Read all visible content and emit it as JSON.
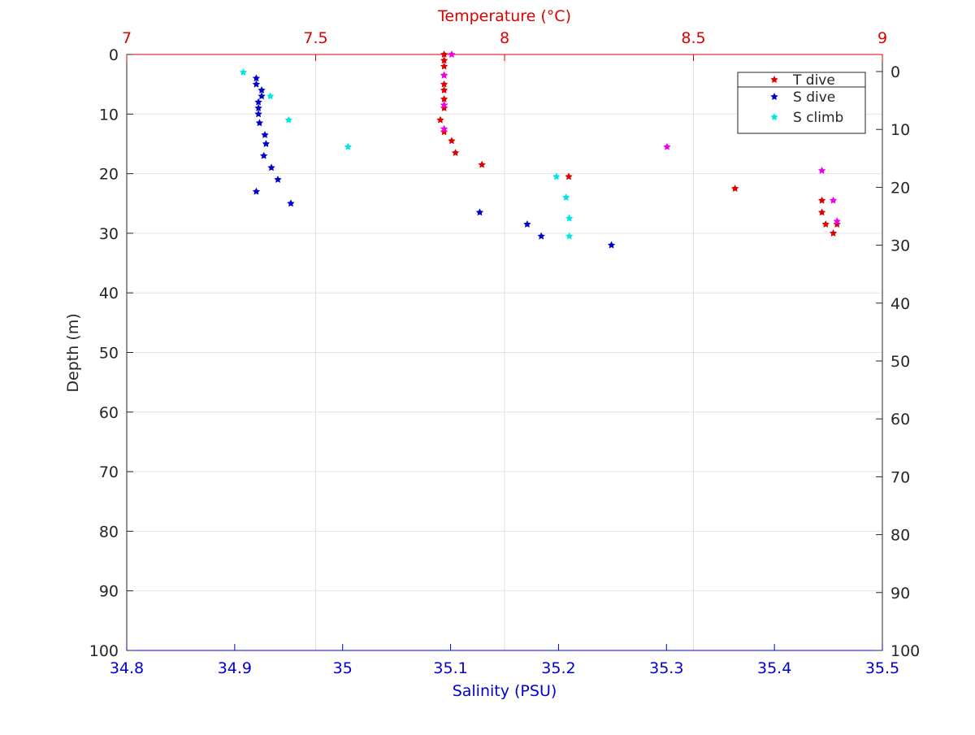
{
  "chart_data": {
    "type": "scatter",
    "axes": {
      "depth_left": {
        "label": "Depth (m)",
        "range": [
          0,
          100
        ],
        "ticks": [
          0,
          10,
          20,
          30,
          40,
          50,
          60,
          70,
          80,
          90,
          100
        ],
        "reversed": true
      },
      "depth_right": {
        "range": [
          0,
          100
        ],
        "ticks": [
          0,
          10,
          20,
          30,
          40,
          50,
          60,
          70,
          80,
          90,
          100
        ],
        "reversed": true
      },
      "salinity": {
        "label": "Salinity (PSU)",
        "range": [
          34.8,
          35.5
        ],
        "ticks": [
          "34.8",
          "34.9",
          "35",
          "35.1",
          "35.2",
          "35.3",
          "35.4",
          "35.5"
        ],
        "color": "#0000cc"
      },
      "temperature": {
        "label": "Temperature (°C)",
        "range": [
          7,
          9
        ],
        "ticks": [
          "7",
          "7.5",
          "8",
          "8.5",
          "9"
        ],
        "color": "#dd0000"
      }
    },
    "grid": true,
    "legend": {
      "position": "top-right",
      "entries": [
        "T dive",
        "S dive",
        "S climb"
      ]
    },
    "series": [
      {
        "name": "T dive",
        "axis": "temperature",
        "color": "#dd0000",
        "x": [
          7.84,
          7.84,
          7.84,
          7.84,
          7.84,
          7.84,
          7.84,
          7.84,
          7.84,
          7.83,
          7.84,
          7.86,
          7.87,
          7.94,
          8.17,
          8.61,
          8.84,
          8.84,
          8.85,
          8.87,
          8.88
        ],
        "y": [
          0,
          1,
          2,
          3.5,
          5,
          6,
          7.5,
          8.5,
          9,
          11,
          13,
          14.5,
          16.5,
          18.5,
          20.5,
          22.5,
          24.5,
          26.5,
          28.5,
          30,
          28.5
        ]
      },
      {
        "name": "S dive",
        "axis": "salinity",
        "color": "#0000cc",
        "x": [
          34.92,
          34.92,
          34.925,
          34.925,
          34.922,
          34.922,
          34.922,
          34.923,
          34.928,
          34.929,
          34.927,
          34.934,
          34.94,
          34.92,
          34.952,
          35.127,
          35.171,
          35.184,
          35.249
        ],
        "y": [
          4,
          5,
          6,
          7,
          8,
          9,
          10,
          11.5,
          13.5,
          15,
          17,
          19,
          21,
          23,
          25,
          26.5,
          28.5,
          30.5,
          32
        ]
      },
      {
        "name": "S climb",
        "axis": "salinity",
        "color": "#00e5e5",
        "x": [
          34.908,
          34.933,
          34.95,
          35.005,
          35.198,
          35.207,
          35.21,
          35.21
        ],
        "y": [
          3,
          7,
          11,
          15.5,
          20.5,
          24,
          27.5,
          30.5
        ]
      },
      {
        "axis": "temperature",
        "color": "#ee00ee",
        "x": [
          7.86,
          7.84,
          7.84,
          7.84,
          8.43,
          8.84,
          8.87,
          8.88
        ],
        "y": [
          0,
          3.5,
          8.5,
          12.5,
          15.5,
          19.5,
          24.5,
          28
        ]
      }
    ]
  }
}
